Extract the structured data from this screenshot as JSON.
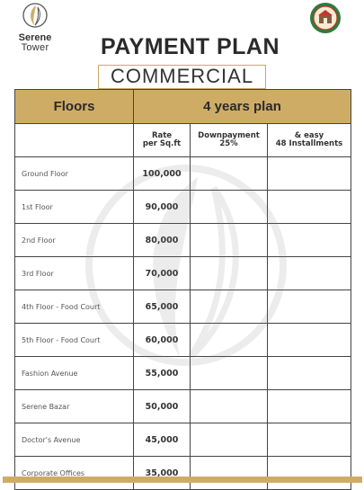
{
  "brand": {
    "name": "Serene",
    "sub": "Tower"
  },
  "title": "PAYMENT PLAN",
  "subtitle": "COMMERCIAL",
  "table": {
    "col_floors": "Floors",
    "col_plan": "4 years plan",
    "sub_rate": [
      "Rate",
      "per Sq.ft"
    ],
    "sub_down": [
      "Downpayment",
      "25%"
    ],
    "sub_inst": [
      "& easy",
      "48 Installments"
    ],
    "rows": [
      {
        "floor": "Ground Floor",
        "rate": "100,000"
      },
      {
        "floor": "1st Floor",
        "rate": "90,000"
      },
      {
        "floor": "2nd Floor",
        "rate": "80,000"
      },
      {
        "floor": "3rd Floor",
        "rate": "70,000"
      },
      {
        "floor": "4th Floor - Food Court",
        "rate": "65,000"
      },
      {
        "floor": "5th Floor -  Food Court",
        "rate": "60,000"
      },
      {
        "floor": "Fashion Avenue",
        "rate": "55,000"
      },
      {
        "floor": "Serene Bazar",
        "rate": "50,000"
      },
      {
        "floor": "Doctor's Avenue",
        "rate": "45,000"
      },
      {
        "floor": "Corporate Offices",
        "rate": "35,000"
      }
    ]
  },
  "colors": {
    "gold": "#cfac66",
    "text": "#2a2a2a"
  }
}
